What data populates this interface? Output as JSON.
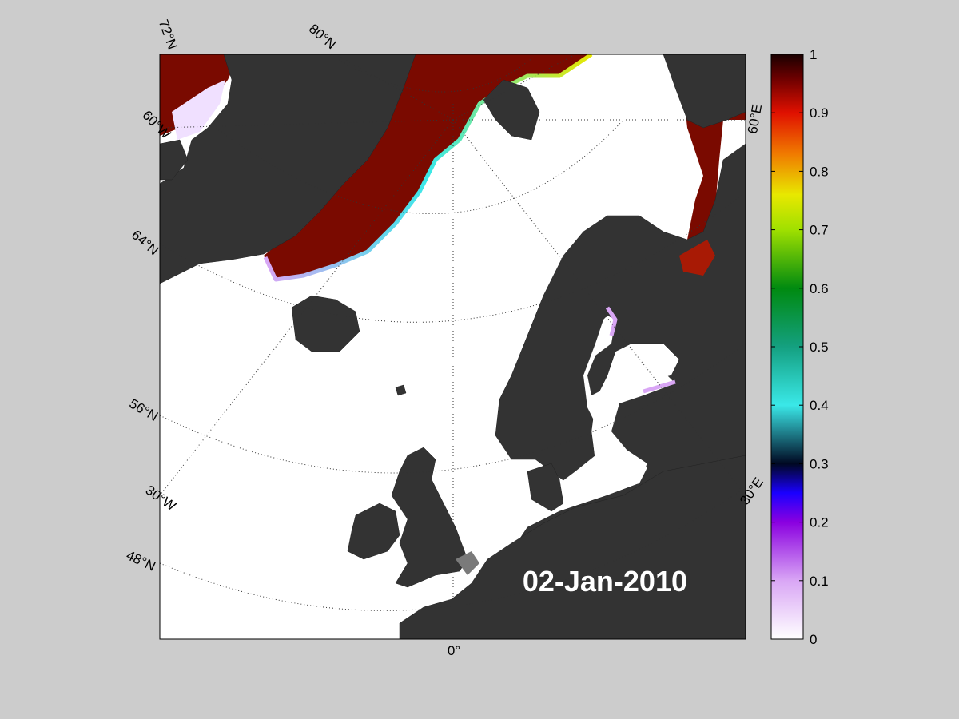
{
  "map": {
    "graticule_labels": [
      "72°N",
      "80°N",
      "60°W",
      "64°N",
      "56°N",
      "30°W",
      "48°N",
      "0°",
      "30°E",
      "60°E"
    ],
    "date": "02-Jan-2010"
  },
  "colorbar": {
    "lim": [
      0,
      1
    ],
    "ticks": [
      0,
      0.1,
      0.2,
      0.3,
      0.4,
      0.5,
      0.6,
      0.7,
      0.8,
      0.9,
      1
    ]
  }
}
